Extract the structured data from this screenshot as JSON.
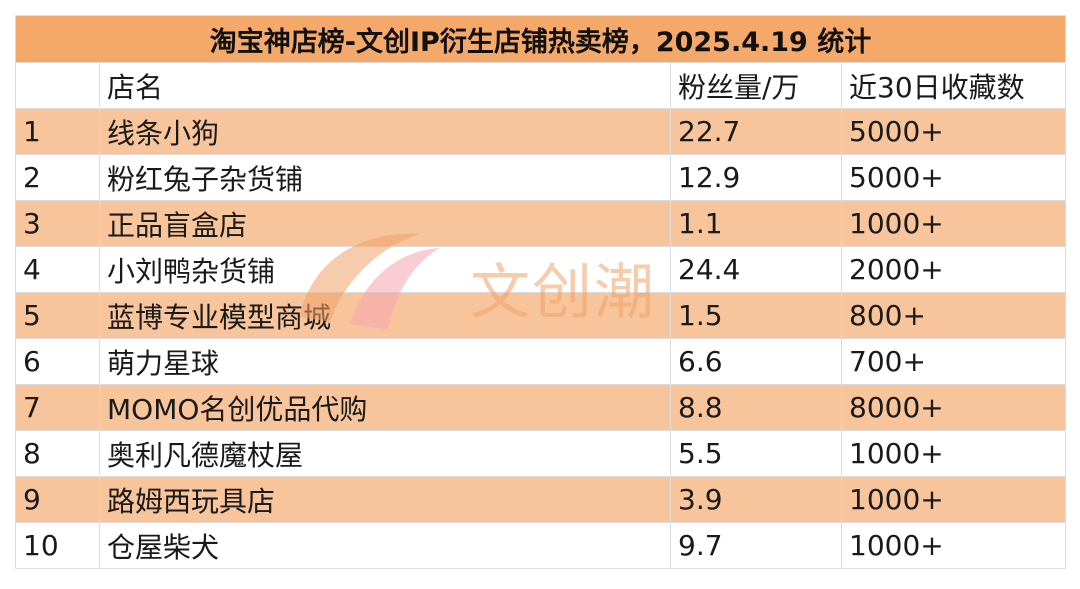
{
  "title": "淘宝神店榜-文创IP衍生店铺热卖榜，2025.4.19 统计",
  "headers": [
    "",
    "店名",
    "粉丝量/万",
    "近30日收藏数"
  ],
  "rows": [
    {
      "rank": "1",
      "name": "线条小狗",
      "fans": "22.7",
      "favorites": "5000+"
    },
    {
      "rank": "2",
      "name": "粉红兔子杂货铺",
      "fans": "12.9",
      "favorites": "5000+"
    },
    {
      "rank": "3",
      "name": "正品盲盒店",
      "fans": "1.1",
      "favorites": "1000+"
    },
    {
      "rank": "4",
      "name": "小刘鸭杂货铺",
      "fans": "24.4",
      "favorites": "2000+"
    },
    {
      "rank": "5",
      "name": "蓝博专业模型商城",
      "fans": "1.5",
      "favorites": "800+"
    },
    {
      "rank": "6",
      "name": "萌力星球",
      "fans": "6.6",
      "favorites": "700+"
    },
    {
      "rank": "7",
      "name": "MOMO名创优品代购",
      "fans": "8.8",
      "favorites": "8000+"
    },
    {
      "rank": "8",
      "name": "奥利凡德魔杖屋",
      "fans": "5.5",
      "favorites": "1000+"
    },
    {
      "rank": "9",
      "name": "路姆西玩具店",
      "fans": "3.9",
      "favorites": "1000+"
    },
    {
      "rank": "10",
      "name": "仓屋柴犬",
      "fans": "9.7",
      "favorites": "1000+"
    }
  ],
  "watermark": {
    "text": "文创潮",
    "logo_icon": "wenchuangchao-logo-icon"
  },
  "colors": {
    "title_bg": "#f4a86a",
    "shaded_row_bg": "#f8c49b",
    "plain_row_bg": "#ffffff",
    "border": "#dcdcdc",
    "watermark_orange": "#f2a36b",
    "watermark_pink": "#f7a6b4"
  }
}
